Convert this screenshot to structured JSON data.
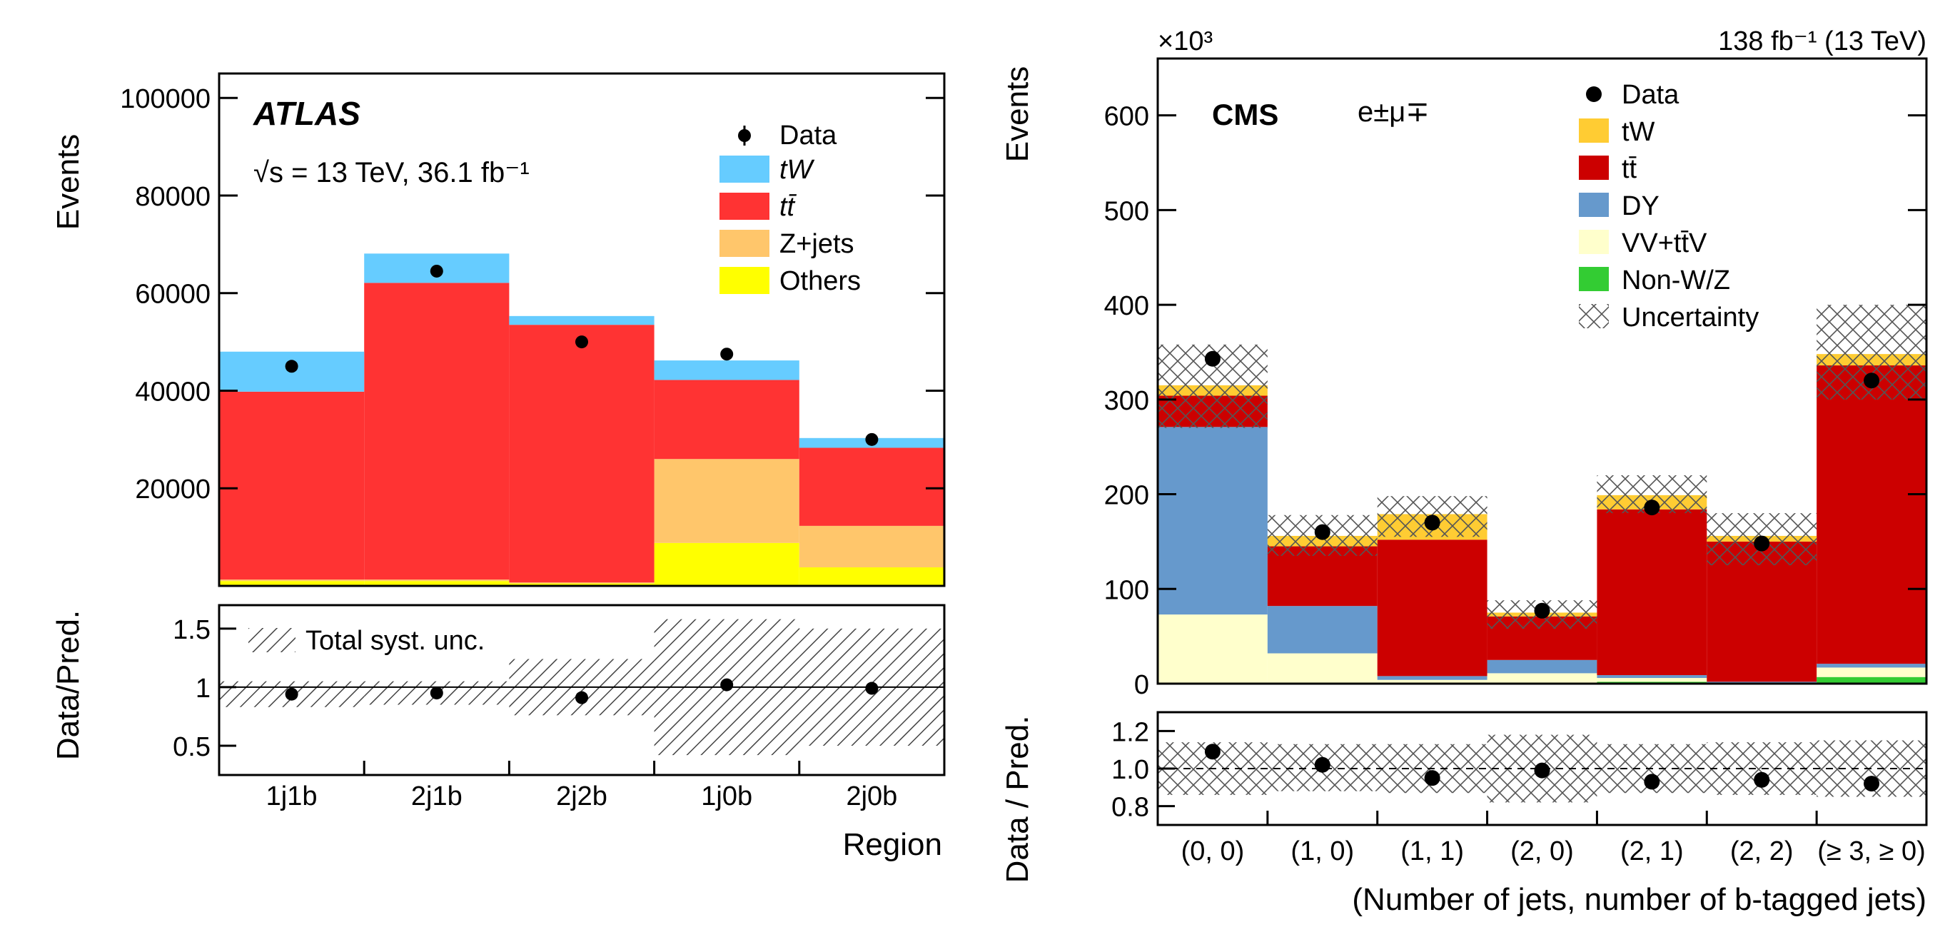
{
  "chart_data": [
    {
      "type": "bar",
      "subtype": "stacked-histogram-with-ratio",
      "experiment": "ATLAS",
      "energy_lumi": "√s = 13 TeV, 36.1 fb⁻¹",
      "ylabel": "Events",
      "xlabel": "Region",
      "ratio_ylabel": "Data/Pred.",
      "ylim": [
        0,
        105000
      ],
      "yticks": [
        "20000",
        "40000",
        "60000",
        "80000",
        "100000"
      ],
      "ratio_ylim": [
        0.25,
        1.7
      ],
      "ratio_yticks": [
        "0.5",
        "1",
        "1.5"
      ],
      "categories": [
        "1j1b",
        "2j1b",
        "2j2b",
        "1j0b",
        "2j0b"
      ],
      "legend_position": "top-right",
      "series": [
        {
          "name": "Others",
          "color": "#ffff00",
          "values": [
            1000,
            1000,
            500,
            8800,
            3800
          ]
        },
        {
          "name": "Z+jets",
          "color": "#ffc66b",
          "values": [
            300,
            300,
            200,
            17200,
            8500
          ]
        },
        {
          "name": "tt̄",
          "color": "#ff3333",
          "values": [
            38500,
            60800,
            52800,
            16200,
            16000
          ]
        },
        {
          "name": "tW",
          "color": "#66ccff",
          "values": [
            8200,
            6000,
            1800,
            4000,
            2000
          ]
        }
      ],
      "data": {
        "name": "Data",
        "values": [
          45000,
          64500,
          50000,
          47500,
          30000
        ]
      },
      "ratio": {
        "values": [
          0.94,
          0.95,
          0.91,
          1.02,
          0.99
        ],
        "unc_low": [
          0.83,
          0.85,
          0.76,
          0.42,
          0.5
        ],
        "unc_high": [
          1.05,
          1.05,
          1.24,
          1.58,
          1.5
        ]
      },
      "legend": {
        "data": "Data",
        "unc": "Total syst. unc."
      }
    },
    {
      "type": "bar",
      "subtype": "stacked-histogram-with-ratio",
      "experiment": "CMS",
      "channel": "e±μ∓",
      "lumi": "138 fb⁻¹ (13 TeV)",
      "ylabel": "Events",
      "exponent": "×10³",
      "xlabel": "(Number of jets, number of b-tagged jets)",
      "ratio_ylabel": "Data / Pred.",
      "ylim": [
        0,
        660
      ],
      "yticks": [
        "0",
        "100",
        "200",
        "300",
        "400",
        "500",
        "600"
      ],
      "ratio_ylim": [
        0.7,
        1.3
      ],
      "ratio_yticks": [
        "0.8",
        "1.0",
        "1.2"
      ],
      "categories": [
        "(0, 0)",
        "(1, 0)",
        "(1, 1)",
        "(2, 0)",
        "(2, 1)",
        "(2, 2)",
        "(≥ 3, ≥ 0)"
      ],
      "legend_position": "top-right",
      "series": [
        {
          "name": "Non-W/Z",
          "color": "#33cc33",
          "values": [
            0,
            0,
            1,
            1,
            2,
            0,
            7
          ]
        },
        {
          "name": "VV+tt̄V",
          "color": "#ffffcc",
          "values": [
            73,
            32,
            3,
            10,
            4,
            1,
            10
          ]
        },
        {
          "name": "DY",
          "color": "#6699cc",
          "values": [
            198,
            50,
            4,
            14,
            3,
            1,
            4
          ]
        },
        {
          "name": "tt̄",
          "color": "#cc0000",
          "values": [
            33,
            63,
            144,
            46,
            175,
            148,
            315
          ]
        },
        {
          "name": "tW",
          "color": "#ffcc33",
          "values": [
            11,
            11,
            27,
            4,
            15,
            6,
            12
          ]
        }
      ],
      "uncertainty_band": {
        "low": [
          270,
          135,
          155,
          58,
          180,
          125,
          300
        ],
        "high": [
          358,
          178,
          198,
          88,
          220,
          180,
          400
        ]
      },
      "data": {
        "name": "Data",
        "values": [
          343,
          160,
          170,
          77,
          186,
          148,
          320
        ]
      },
      "ratio": {
        "values": [
          1.09,
          1.02,
          0.95,
          0.99,
          0.93,
          0.94,
          0.92
        ],
        "unc_low": [
          0.86,
          0.88,
          0.87,
          0.82,
          0.87,
          0.86,
          0.85
        ],
        "unc_high": [
          1.14,
          1.13,
          1.13,
          1.18,
          1.13,
          1.14,
          1.15
        ]
      },
      "legend": {
        "data": "Data",
        "unc": "Uncertainty"
      }
    }
  ]
}
